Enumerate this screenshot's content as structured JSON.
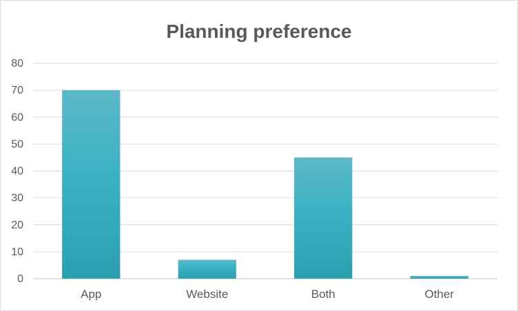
{
  "chart_data": {
    "type": "bar",
    "title": "Planning preference",
    "categories": [
      "App",
      "Website",
      "Both",
      "Other"
    ],
    "values": [
      70,
      7,
      45,
      1
    ],
    "xlabel": "",
    "ylabel": "",
    "ylim": [
      0,
      80
    ],
    "yticks": [
      "0",
      "10",
      "20",
      "30",
      "40",
      "50",
      "60",
      "70",
      "80"
    ],
    "grid": true,
    "legend": "none",
    "colors": {
      "bar_top": "#5cb8c8",
      "bar_mid": "#3ab2c3",
      "bar_bottom": "#2b9fb0",
      "grid": "#d9d9d9",
      "text": "#595959"
    }
  }
}
